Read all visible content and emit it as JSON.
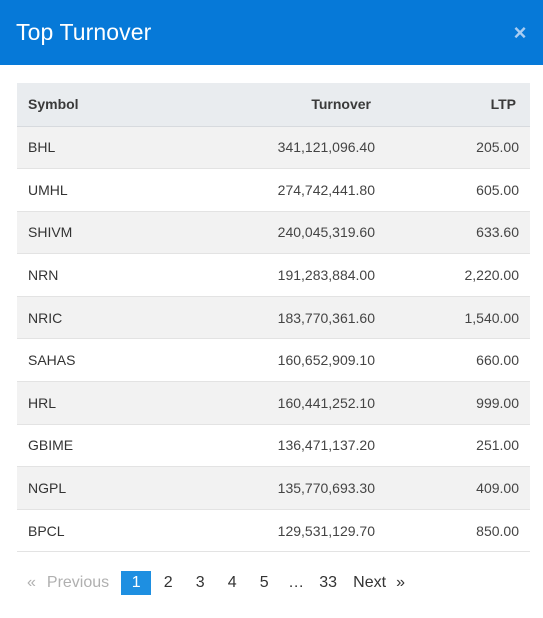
{
  "header": {
    "title": "Top Turnover",
    "close_label": "×"
  },
  "table": {
    "columns": [
      "Symbol",
      "Turnover",
      "LTP"
    ],
    "rows": [
      {
        "symbol": "BHL",
        "turnover": "341,121,096.40",
        "ltp": "205.00"
      },
      {
        "symbol": "UMHL",
        "turnover": "274,742,441.80",
        "ltp": "605.00"
      },
      {
        "symbol": "SHIVM",
        "turnover": "240,045,319.60",
        "ltp": "633.60"
      },
      {
        "symbol": "NRN",
        "turnover": "191,283,884.00",
        "ltp": "2,220.00"
      },
      {
        "symbol": "NRIC",
        "turnover": "183,770,361.60",
        "ltp": "1,540.00"
      },
      {
        "symbol": "SAHAS",
        "turnover": "160,652,909.10",
        "ltp": "660.00"
      },
      {
        "symbol": "HRL",
        "turnover": "160,441,252.10",
        "ltp": "999.00"
      },
      {
        "symbol": "GBIME",
        "turnover": "136,471,137.20",
        "ltp": "251.00"
      },
      {
        "symbol": "NGPL",
        "turnover": "135,770,693.30",
        "ltp": "409.00"
      },
      {
        "symbol": "BPCL",
        "turnover": "129,531,129.70",
        "ltp": "850.00"
      }
    ]
  },
  "pagination": {
    "prev_arrow": "«",
    "prev_label": "Previous",
    "pages": [
      "1",
      "2",
      "3",
      "4",
      "5"
    ],
    "current": "1",
    "ellipsis": "…",
    "last_page": "33",
    "next_label": "Next",
    "next_arrow": "»"
  },
  "colors": {
    "header_bg": "#0679d8",
    "current_page_bg": "#1e8fe1"
  }
}
